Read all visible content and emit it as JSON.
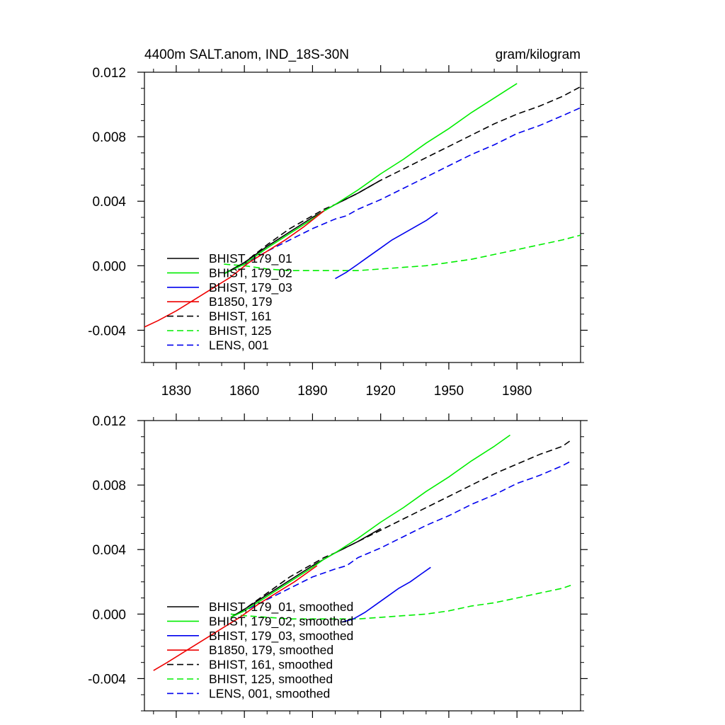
{
  "header": {
    "left_title": "4400m SALT.anom, IND_18S-30N",
    "right_title": "gram/kilogram"
  },
  "chart_data": [
    {
      "type": "line",
      "title": "4400m SALT.anom, IND_18S-30N",
      "units": "gram/kilogram",
      "xlim": [
        1816,
        2008
      ],
      "ylim": [
        -0.006,
        0.012
      ],
      "x_ticks": [
        1830,
        1860,
        1890,
        1920,
        1950,
        1980
      ],
      "y_ticks": [
        0.012,
        0.008,
        0.004,
        0.0,
        -0.004
      ],
      "y_tick_labels": [
        "0.012",
        "0.008",
        "0.004",
        "0.000",
        "-0.004"
      ],
      "legend_position": "lower-left",
      "series": [
        {
          "name": "BHIST, 179_01",
          "color": "#000000",
          "dash": "solid",
          "x": [
            1851,
            1860,
            1870,
            1880,
            1890,
            1895,
            1900,
            1910,
            1920
          ],
          "y": [
            -0.0005,
            0.0002,
            0.0012,
            0.0021,
            0.003,
            0.0034,
            0.0038,
            0.0045,
            0.0053
          ]
        },
        {
          "name": "BHIST, 179_02",
          "color": "#00ee00",
          "dash": "solid",
          "x": [
            1851,
            1860,
            1870,
            1880,
            1890,
            1895,
            1900,
            1910,
            1920,
            1930,
            1940,
            1950,
            1960,
            1970,
            1980
          ],
          "y": [
            -0.0005,
            0.0001,
            0.0011,
            0.002,
            0.0029,
            0.0034,
            0.0038,
            0.0047,
            0.0057,
            0.0066,
            0.0076,
            0.0085,
            0.0095,
            0.0104,
            0.0113
          ]
        },
        {
          "name": "BHIST, 179_03",
          "color": "#0000ee",
          "dash": "solid",
          "x": [
            1900,
            1905,
            1910,
            1915,
            1920,
            1925,
            1930,
            1935,
            1940,
            1945
          ],
          "y": [
            -0.0008,
            -0.0004,
            0.0001,
            0.0006,
            0.0011,
            0.0016,
            0.002,
            0.0024,
            0.0028,
            0.0033
          ]
        },
        {
          "name": "B1850, 179",
          "color": "#ee0000",
          "dash": "solid",
          "x": [
            1816,
            1822,
            1830,
            1838,
            1846,
            1854,
            1862,
            1870,
            1878,
            1886,
            1895
          ],
          "y": [
            -0.0038,
            -0.0034,
            -0.0028,
            -0.0021,
            -0.0014,
            -0.0007,
            0.0002,
            0.0009,
            0.0016,
            0.0024,
            0.0034
          ]
        },
        {
          "name": "BHIST, 161",
          "color": "#000000",
          "dash": "dashed",
          "x": [
            1851,
            1860,
            1870,
            1880,
            1890,
            1895,
            1900,
            1910,
            1920,
            1930,
            1940,
            1950,
            1960,
            1970,
            1980,
            1990,
            2000,
            2008
          ],
          "y": [
            -0.0005,
            0.0002,
            0.0013,
            0.0023,
            0.0031,
            0.0035,
            0.0038,
            0.0045,
            0.0053,
            0.006,
            0.0067,
            0.0074,
            0.0081,
            0.0088,
            0.0094,
            0.0099,
            0.0105,
            0.0111
          ]
        },
        {
          "name": "BHIST, 125",
          "color": "#00ee00",
          "dash": "dashed",
          "x": [
            1851,
            1860,
            1870,
            1880,
            1890,
            1900,
            1910,
            1920,
            1930,
            1940,
            1950,
            1960,
            1970,
            1980,
            1990,
            2000,
            2008
          ],
          "y": [
            0.0001,
            0.0,
            -0.0002,
            -0.0003,
            -0.0003,
            -0.0003,
            -0.0003,
            -0.0002,
            -0.0001,
            0.0,
            0.0002,
            0.0004,
            0.0007,
            0.001,
            0.0013,
            0.0016,
            0.0019
          ]
        },
        {
          "name": "LENS, 001",
          "color": "#0000ee",
          "dash": "dashed",
          "x": [
            1851,
            1860,
            1870,
            1880,
            1890,
            1900,
            1905,
            1910,
            1920,
            1930,
            1940,
            1950,
            1960,
            1970,
            1980,
            1990,
            2000,
            2008
          ],
          "y": [
            -0.0005,
            0.0001,
            0.0009,
            0.0016,
            0.0023,
            0.0029,
            0.0031,
            0.0035,
            0.0041,
            0.0048,
            0.0055,
            0.0062,
            0.0069,
            0.0075,
            0.0082,
            0.0087,
            0.0093,
            0.0098
          ]
        }
      ]
    },
    {
      "type": "line",
      "xlim": [
        1816,
        2008
      ],
      "ylim": [
        -0.006,
        0.012
      ],
      "x_ticks": [
        1830,
        1860,
        1890,
        1920,
        1950,
        1980
      ],
      "y_ticks": [
        0.012,
        0.008,
        0.004,
        0.0,
        -0.004
      ],
      "y_tick_labels": [
        "0.012",
        "0.008",
        "0.004",
        "0.000",
        "-0.004"
      ],
      "legend_position": "lower-left",
      "series": [
        {
          "name": "BHIST, 179_01, smoothed",
          "color": "#000000",
          "dash": "solid",
          "x": [
            1854,
            1860,
            1870,
            1880,
            1890,
            1895,
            1900,
            1910,
            1920
          ],
          "y": [
            -0.0002,
            0.0003,
            0.0012,
            0.0021,
            0.003,
            0.0034,
            0.0038,
            0.0045,
            0.0053
          ]
        },
        {
          "name": "BHIST, 179_02, smoothed",
          "color": "#00ee00",
          "dash": "solid",
          "x": [
            1854,
            1860,
            1870,
            1880,
            1890,
            1895,
            1900,
            1910,
            1920,
            1930,
            1940,
            1950,
            1960,
            1970,
            1977
          ],
          "y": [
            -0.0002,
            0.0002,
            0.0011,
            0.002,
            0.0029,
            0.0034,
            0.0038,
            0.0047,
            0.0057,
            0.0066,
            0.0076,
            0.0085,
            0.0095,
            0.0104,
            0.0111
          ]
        },
        {
          "name": "BHIST, 179_03, smoothed",
          "color": "#0000ee",
          "dash": "solid",
          "x": [
            1903,
            1908,
            1913,
            1918,
            1923,
            1928,
            1933,
            1938,
            1942
          ],
          "y": [
            -0.0005,
            -0.0003,
            0.0001,
            0.0006,
            0.0011,
            0.0016,
            0.002,
            0.0025,
            0.0029
          ]
        },
        {
          "name": "B1850, 179, smoothed",
          "color": "#ee0000",
          "dash": "solid",
          "x": [
            1820,
            1826,
            1834,
            1842,
            1850,
            1858,
            1866,
            1874,
            1882,
            1892
          ],
          "y": [
            -0.0035,
            -0.003,
            -0.0023,
            -0.0016,
            -0.0009,
            -0.0002,
            0.0006,
            0.0013,
            0.002,
            0.003
          ]
        },
        {
          "name": "BHIST, 161, smoothed",
          "color": "#000000",
          "dash": "dashed",
          "x": [
            1854,
            1860,
            1870,
            1880,
            1890,
            1895,
            1900,
            1910,
            1920,
            1930,
            1940,
            1950,
            1960,
            1970,
            1980,
            1990,
            2000,
            2004
          ],
          "y": [
            -0.0002,
            0.0003,
            0.0013,
            0.0023,
            0.0031,
            0.0035,
            0.0038,
            0.0045,
            0.0052,
            0.0059,
            0.0066,
            0.0073,
            0.008,
            0.0087,
            0.0093,
            0.0099,
            0.0104,
            0.0108
          ]
        },
        {
          "name": "BHIST, 125, smoothed",
          "color": "#00ee00",
          "dash": "dashed",
          "x": [
            1854,
            1860,
            1870,
            1880,
            1890,
            1900,
            1910,
            1920,
            1930,
            1940,
            1950,
            1960,
            1970,
            1980,
            1990,
            2000,
            2004
          ],
          "y": [
            0.0,
            -0.0001,
            -0.0002,
            -0.0003,
            -0.0003,
            -0.0003,
            -0.0003,
            -0.0002,
            -0.0001,
            0.0,
            0.0002,
            0.0005,
            0.0007,
            0.001,
            0.0013,
            0.0016,
            0.0018
          ]
        },
        {
          "name": "LENS, 001, smoothed",
          "color": "#0000ee",
          "dash": "dashed",
          "x": [
            1854,
            1860,
            1870,
            1880,
            1890,
            1900,
            1905,
            1910,
            1920,
            1930,
            1940,
            1950,
            1960,
            1970,
            1980,
            1990,
            2000,
            2004
          ],
          "y": [
            -0.0002,
            0.0002,
            0.0009,
            0.0016,
            0.0023,
            0.0028,
            0.003,
            0.0035,
            0.0041,
            0.0048,
            0.0055,
            0.0061,
            0.0068,
            0.0074,
            0.0081,
            0.0086,
            0.0092,
            0.0095
          ]
        }
      ]
    }
  ]
}
